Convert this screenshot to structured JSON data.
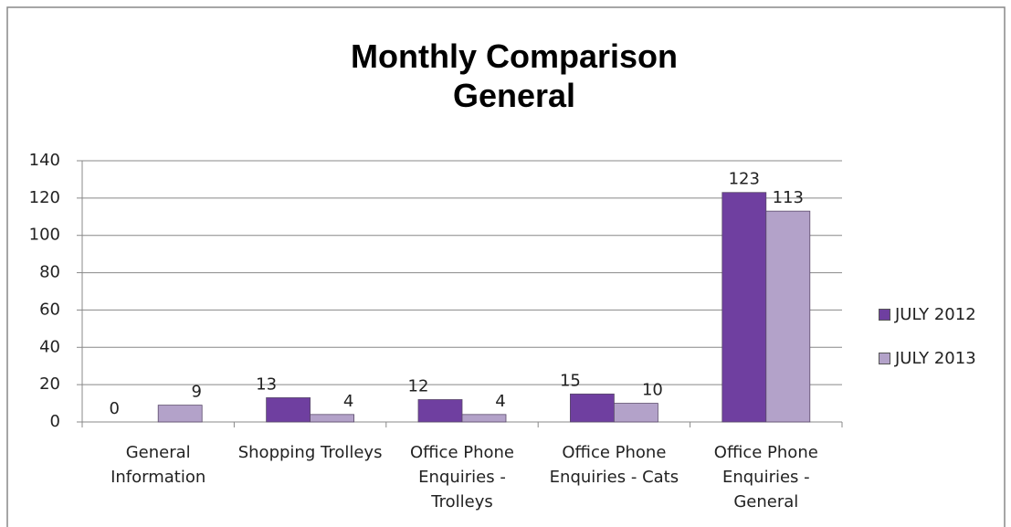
{
  "chart_data": {
    "type": "bar",
    "title": "Monthly Comparison General",
    "categories": [
      "General Information",
      "Shopping Trolleys",
      "Office Phone Enquiries - Trolleys",
      "Office Phone Enquiries - Cats",
      "Office Phone Enquiries - General"
    ],
    "series": [
      {
        "name": "JULY 2012",
        "color": "#6f3fa0",
        "values": [
          0,
          13,
          12,
          15,
          123
        ]
      },
      {
        "name": "JULY 2013",
        "color": "#b3a2c9",
        "values": [
          9,
          4,
          4,
          10,
          113
        ]
      }
    ],
    "ylim": [
      0,
      140
    ],
    "yticks": [
      0,
      20,
      40,
      60,
      80,
      100,
      120,
      140
    ],
    "grid": true,
    "legend": "right"
  }
}
